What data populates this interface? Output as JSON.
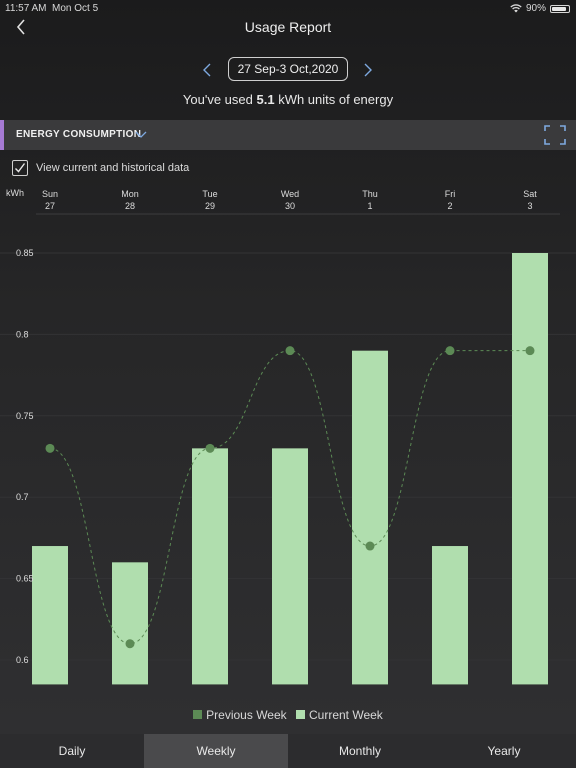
{
  "status_bar": {
    "time": "11:57 AM",
    "date": "Mon Oct 5",
    "battery": "90%",
    "battery_level": 0.9
  },
  "header": {
    "title": "Usage Report"
  },
  "date_range": {
    "label": "27 Sep-3 Oct,2020"
  },
  "usage": {
    "prefix": "You've used",
    "value": "5.1",
    "suffix": "kWh units of energy"
  },
  "section": {
    "title": "ENERGY CONSUMPTION"
  },
  "history_toggle": {
    "label": "View current and historical data",
    "checked": true
  },
  "colors": {
    "current": "#b0deae",
    "previous": "#5c8a55",
    "accent": "#a67ad4"
  },
  "chart_data": {
    "type": "bar",
    "ylabel": "kWh",
    "ylim": [
      0.585,
      0.87
    ],
    "y_ticks": [
      "0.85",
      "0.8",
      "0.75",
      "0.7",
      "0.65",
      "0.6"
    ],
    "days": [
      "Sun",
      "Mon",
      "Tue",
      "Wed",
      "Thu",
      "Fri",
      "Sat"
    ],
    "dates": [
      "27",
      "28",
      "29",
      "30",
      "1",
      "2",
      "3"
    ],
    "series": [
      {
        "name": "Current Week",
        "kind": "bar",
        "values": [
          0.67,
          0.66,
          0.73,
          0.73,
          0.79,
          0.67,
          0.85
        ]
      },
      {
        "name": "Previous Week",
        "kind": "line",
        "values": [
          0.73,
          0.61,
          0.73,
          0.79,
          0.67,
          0.79,
          0.79
        ]
      }
    ]
  },
  "tabs": [
    {
      "label": "Daily",
      "active": false
    },
    {
      "label": "Weekly",
      "active": true
    },
    {
      "label": "Monthly",
      "active": false
    },
    {
      "label": "Yearly",
      "active": false
    }
  ]
}
